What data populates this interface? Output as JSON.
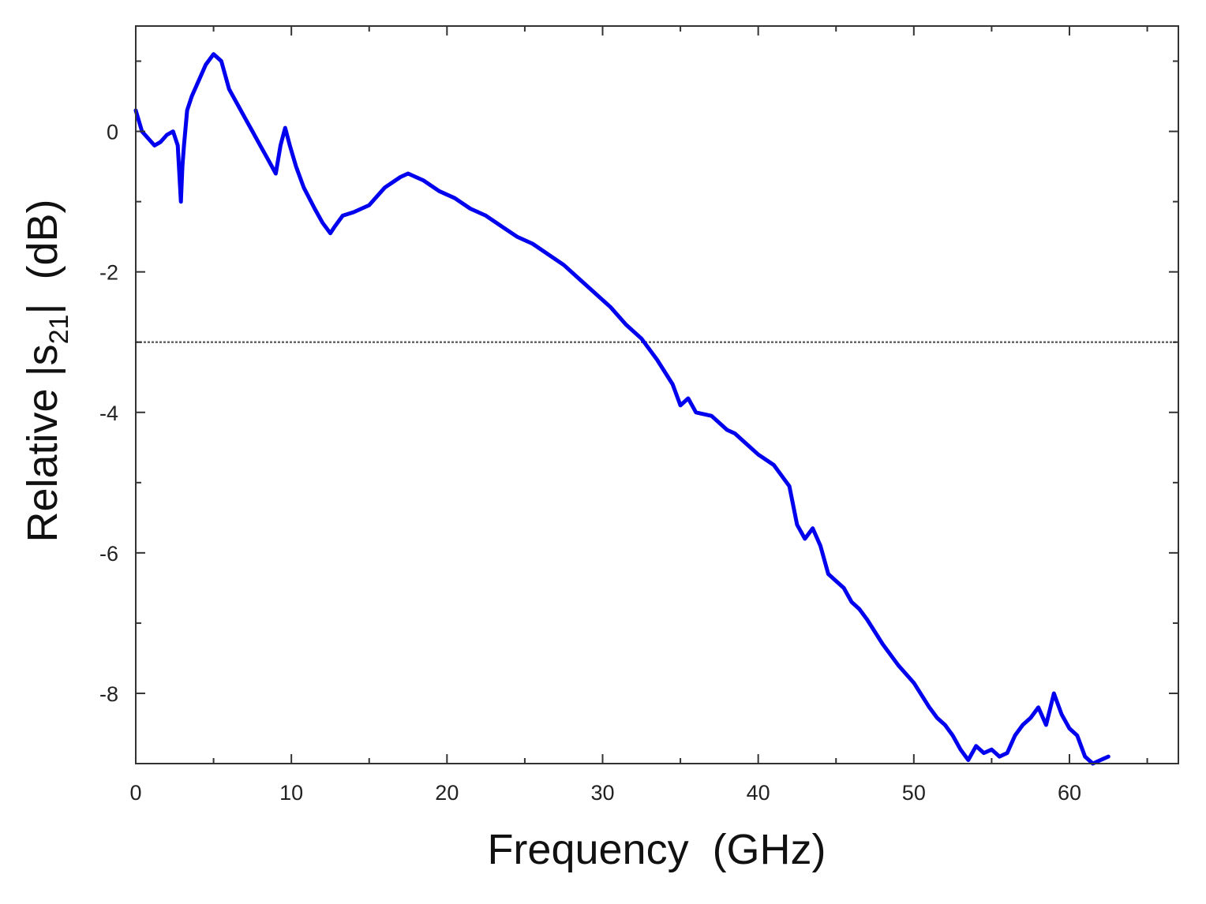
{
  "chart_data": {
    "type": "line",
    "xlabel": "Frequency  (GHz)",
    "ylabel": {
      "before": "Relative |s",
      "subscript": "21",
      "after": "|  (dB)"
    },
    "xlim": [
      0,
      67
    ],
    "ylim": [
      -9,
      1.5
    ],
    "xticks": [
      0,
      10,
      20,
      30,
      40,
      50,
      60
    ],
    "xtick_labels": [
      "0",
      "10",
      "20",
      "30",
      "40",
      "50",
      "60"
    ],
    "yticks": [
      0,
      -2,
      -4,
      -6,
      -8
    ],
    "ytick_labels": [
      "0",
      "-2",
      "-4",
      "-6",
      "-8"
    ],
    "reference_line": {
      "y": -3,
      "style": "dotted",
      "color": "#666666"
    },
    "grid": false,
    "series": [
      {
        "color": "#0000ee",
        "x": [
          0,
          0.4,
          0.8,
          1.2,
          1.6,
          2.0,
          2.4,
          2.7,
          2.9,
          3.0,
          3.1,
          3.3,
          3.6,
          4.0,
          4.5,
          5.0,
          5.5,
          6.0,
          6.5,
          7.0,
          7.5,
          8.0,
          8.5,
          9.0,
          9.3,
          9.6,
          9.9,
          10.3,
          10.8,
          11.5,
          12.0,
          12.5,
          12.8,
          13.3,
          14.0,
          15.0,
          16.0,
          17.0,
          17.5,
          18.5,
          19.5,
          20.5,
          21.5,
          22.5,
          23.5,
          24.5,
          25.5,
          26.5,
          27.5,
          28.5,
          29.5,
          30.5,
          31.5,
          32.5,
          33.5,
          34.5,
          35.0,
          35.5,
          36.0,
          37.0,
          38.0,
          38.5,
          39.0,
          40.0,
          41.0,
          42.0,
          42.5,
          43.0,
          43.5,
          44.0,
          44.5,
          45.0,
          45.5,
          46.0,
          46.5,
          47.0,
          48.0,
          49.0,
          50.0,
          51.0,
          51.5,
          52.0,
          52.5,
          53.0,
          53.5,
          54.0,
          54.5,
          55.0,
          55.5,
          56.0,
          56.5,
          57.0,
          57.5,
          58.0,
          58.5,
          59.0,
          59.5,
          60.0,
          60.5,
          61.0,
          61.5,
          62.0,
          62.5
        ],
        "values": [
          0.3,
          0.0,
          -0.1,
          -0.2,
          -0.15,
          -0.05,
          0.0,
          -0.2,
          -1.0,
          -0.5,
          -0.2,
          0.3,
          0.5,
          0.7,
          0.95,
          1.1,
          1.0,
          0.6,
          0.4,
          0.2,
          0.0,
          -0.2,
          -0.4,
          -0.6,
          -0.2,
          0.05,
          -0.2,
          -0.5,
          -0.8,
          -1.1,
          -1.3,
          -1.45,
          -1.35,
          -1.2,
          -1.15,
          -1.05,
          -0.8,
          -0.65,
          -0.6,
          -0.7,
          -0.85,
          -0.95,
          -1.1,
          -1.2,
          -1.35,
          -1.5,
          -1.6,
          -1.75,
          -1.9,
          -2.1,
          -2.3,
          -2.5,
          -2.75,
          -2.95,
          -3.25,
          -3.6,
          -3.9,
          -3.8,
          -4.0,
          -4.05,
          -4.25,
          -4.3,
          -4.4,
          -4.6,
          -4.75,
          -5.05,
          -5.6,
          -5.8,
          -5.65,
          -5.9,
          -6.3,
          -6.4,
          -6.5,
          -6.7,
          -6.8,
          -6.95,
          -7.3,
          -7.6,
          -7.85,
          -8.2,
          -8.35,
          -8.45,
          -8.6,
          -8.8,
          -8.95,
          -8.75,
          -8.85,
          -8.8,
          -8.9,
          -8.85,
          -8.6,
          -8.45,
          -8.35,
          -8.2,
          -8.45,
          -8.0,
          -8.3,
          -8.5,
          -8.6,
          -8.9,
          -9.0,
          -8.95,
          -8.9
        ]
      }
    ]
  }
}
